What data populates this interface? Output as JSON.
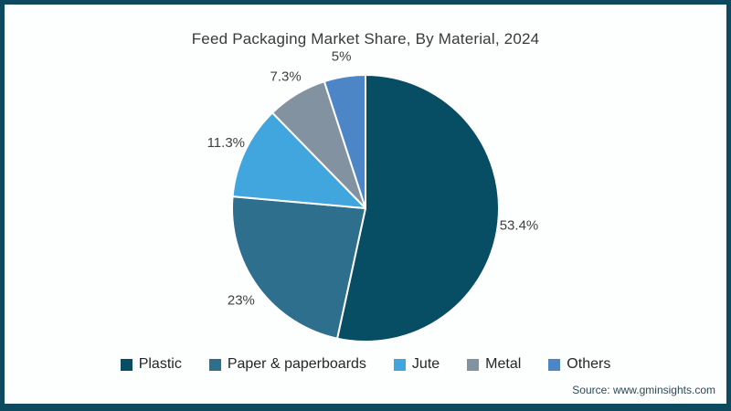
{
  "frame": {
    "border_color": "#0e4a5f",
    "background": "#fdfefe"
  },
  "title": "Feed Packaging Market Share, By Material, 2024",
  "source": "Source: www.gminsights.com",
  "chart_data": {
    "type": "pie",
    "title": "Feed Packaging Market Share, By Material, 2024",
    "categories": [
      "Plastic",
      "Paper & paperboards",
      "Jute",
      "Metal",
      "Others"
    ],
    "values": [
      53.4,
      23,
      11.3,
      7.3,
      5
    ],
    "value_labels": [
      "53.4%",
      "23%",
      "11.3%",
      "7.3%",
      "5%"
    ],
    "colors": [
      "#074e64",
      "#2e6f8e",
      "#41a5de",
      "#8292a0",
      "#4c86c6"
    ],
    "start_angle_deg": 0,
    "direction": "clockwise",
    "slice_border_color": "#ffffff",
    "legend_position": "bottom",
    "label_position": "outside"
  }
}
